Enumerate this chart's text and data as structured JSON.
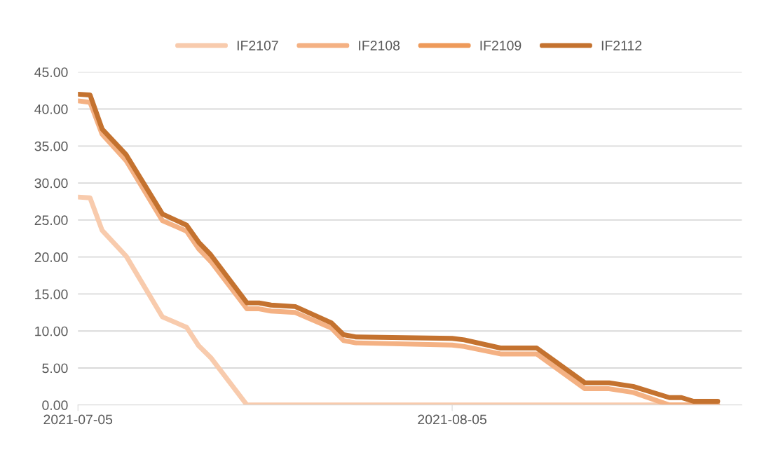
{
  "chart_data": {
    "type": "line",
    "x": [
      "2021-07-05",
      "2021-07-06",
      "2021-07-07",
      "2021-07-09",
      "2021-07-12",
      "2021-07-14",
      "2021-07-15",
      "2021-07-16",
      "2021-07-19",
      "2021-07-20",
      "2021-07-21",
      "2021-07-23",
      "2021-07-26",
      "2021-07-27",
      "2021-07-28",
      "2021-08-05",
      "2021-08-06",
      "2021-08-09",
      "2021-08-12",
      "2021-08-16",
      "2021-08-18",
      "2021-08-20",
      "2021-08-23",
      "2021-08-24",
      "2021-08-25",
      "2021-08-27"
    ],
    "series": [
      {
        "name": "IF2107",
        "color": "#f8cbad",
        "values": [
          28.1,
          28.0,
          23.6,
          20.1,
          11.9,
          10.5,
          8.0,
          6.4,
          0,
          0,
          0,
          0,
          0,
          0,
          0,
          0,
          0,
          0,
          0,
          0,
          0,
          0,
          0,
          0,
          0,
          0
        ]
      },
      {
        "name": "IF2108",
        "color": "#f4b183",
        "values": [
          41.1,
          40.9,
          36.6,
          33.0,
          24.9,
          23.5,
          21.1,
          19.4,
          13.0,
          13.0,
          12.7,
          12.5,
          10.4,
          8.7,
          8.4,
          8.1,
          7.9,
          6.9,
          6.9,
          2.2,
          2.2,
          1.7,
          0.0,
          0.0,
          0.0,
          0.0
        ]
      },
      {
        "name": "IF2109",
        "color": "#ee9a5a",
        "values": [
          null,
          null,
          null,
          null,
          null,
          null,
          null,
          null,
          null,
          null,
          null,
          null,
          null,
          null,
          null,
          null,
          null,
          null,
          null,
          null,
          null,
          null,
          null,
          null,
          null,
          null
        ]
      },
      {
        "name": "IF2112",
        "color": "#c4722f",
        "values": [
          42.0,
          41.9,
          37.3,
          33.8,
          25.8,
          24.3,
          22.0,
          20.3,
          13.8,
          13.8,
          13.5,
          13.3,
          11.1,
          9.5,
          9.2,
          9.0,
          8.8,
          7.7,
          7.7,
          3.0,
          3.0,
          2.5,
          1.0,
          1.0,
          0.5,
          0.5
        ]
      }
    ],
    "xlim": [
      "2021-07-05",
      "2021-08-29"
    ],
    "xticks": [
      "2021-07-05",
      "2021-08-05"
    ],
    "ylim": [
      0,
      45
    ],
    "yticks": [
      {
        "value": 0,
        "label": "0.00"
      },
      {
        "value": 5,
        "label": "5.00"
      },
      {
        "value": 10,
        "label": "10.00"
      },
      {
        "value": 15,
        "label": "15.00"
      },
      {
        "value": 20,
        "label": "20.00"
      },
      {
        "value": 25,
        "label": "25.00"
      },
      {
        "value": 30,
        "label": "30.00"
      },
      {
        "value": 35,
        "label": "35.00"
      },
      {
        "value": 40,
        "label": "40.00"
      },
      {
        "value": 45,
        "label": "45.00"
      }
    ],
    "grid": "y",
    "legend": "top",
    "marker": "none",
    "line_style": "solid"
  }
}
